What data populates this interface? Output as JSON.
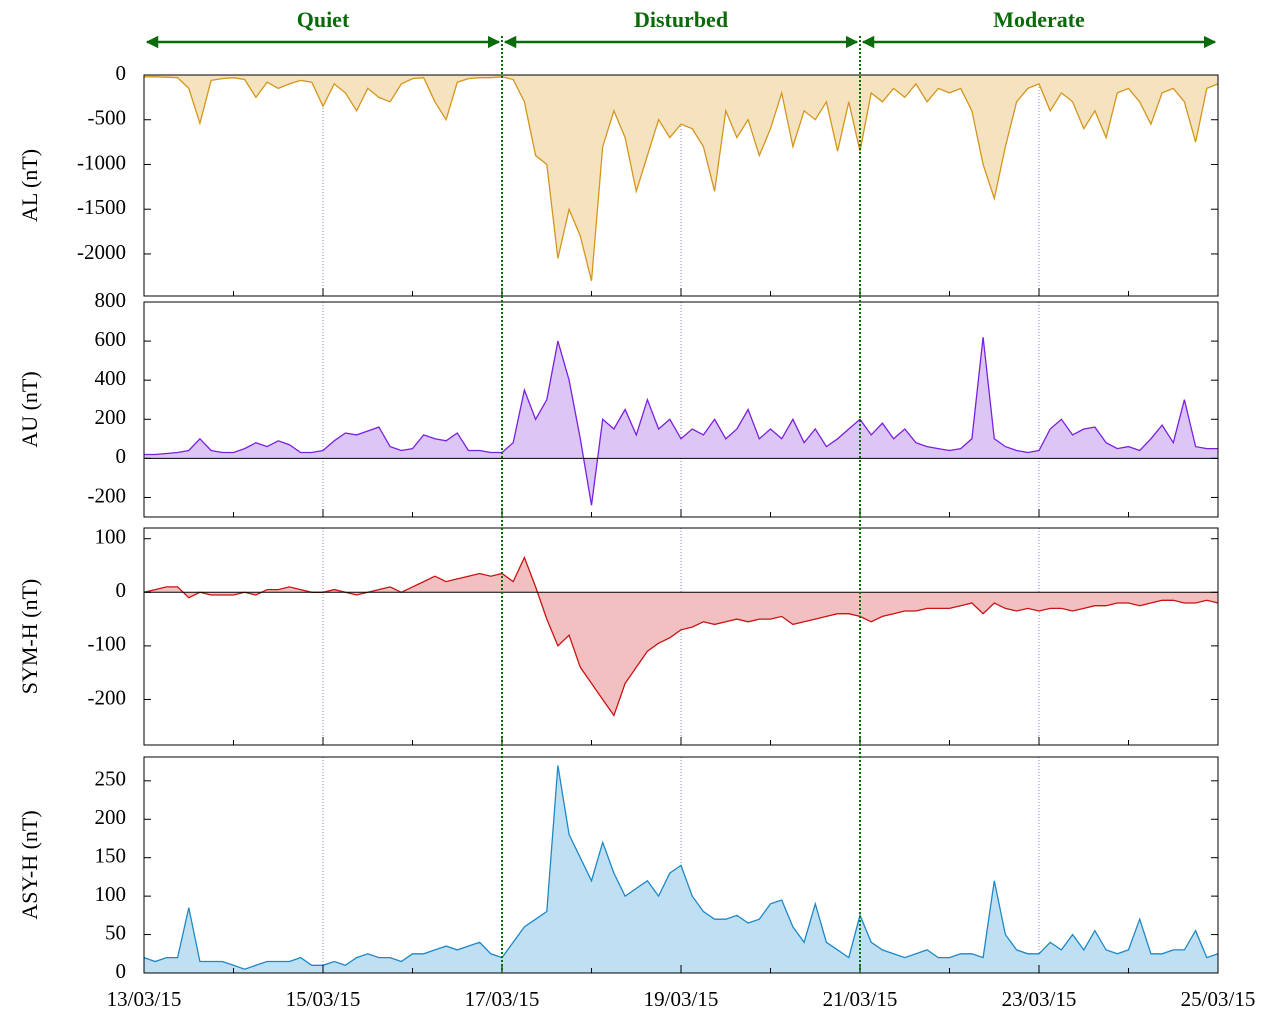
{
  "chart_data": [
    {
      "type": "area",
      "ylabel": "AL (nT)",
      "color": "#d4961c",
      "fill": "#f5e3c0",
      "x": [
        13,
        13.125,
        13.25,
        13.375,
        13.5,
        13.625,
        13.75,
        13.875,
        14,
        14.125,
        14.25,
        14.375,
        14.5,
        14.625,
        14.75,
        14.875,
        15,
        15.125,
        15.25,
        15.375,
        15.5,
        15.625,
        15.75,
        15.875,
        16,
        16.125,
        16.25,
        16.375,
        16.5,
        16.625,
        16.75,
        16.875,
        17,
        17.125,
        17.25,
        17.375,
        17.5,
        17.625,
        17.75,
        17.875,
        18,
        18.125,
        18.25,
        18.375,
        18.5,
        18.625,
        18.75,
        18.875,
        19,
        19.125,
        19.25,
        19.375,
        19.5,
        19.625,
        19.75,
        19.875,
        20,
        20.125,
        20.25,
        20.375,
        20.5,
        20.625,
        20.75,
        20.875,
        21,
        21.125,
        21.25,
        21.375,
        21.5,
        21.625,
        21.75,
        21.875,
        22,
        22.125,
        22.25,
        22.375,
        22.5,
        22.625,
        22.75,
        22.875,
        23,
        23.125,
        23.25,
        23.375,
        23.5,
        23.625,
        23.75,
        23.875,
        24,
        24.125,
        24.25,
        24.375,
        24.5,
        24.625,
        24.75,
        24.875,
        25
      ],
      "values": [
        -20,
        -20,
        -25,
        -30,
        -150,
        -540,
        -60,
        -40,
        -30,
        -50,
        -250,
        -80,
        -150,
        -100,
        -60,
        -80,
        -350,
        -100,
        -200,
        -400,
        -150,
        -250,
        -300,
        -100,
        -40,
        -30,
        -300,
        -500,
        -80,
        -40,
        -30,
        -30,
        -20,
        -50,
        -300,
        -900,
        -1000,
        -2050,
        -1500,
        -1800,
        -2300,
        -800,
        -400,
        -700,
        -1300,
        -900,
        -500,
        -700,
        -550,
        -600,
        -800,
        -1300,
        -400,
        -700,
        -500,
        -900,
        -600,
        -200,
        -800,
        -400,
        -500,
        -300,
        -850,
        -300,
        -850,
        -200,
        -300,
        -150,
        -250,
        -100,
        -300,
        -150,
        -200,
        -150,
        -400,
        -1000,
        -1380,
        -800,
        -300,
        -150,
        -100,
        -400,
        -200,
        -300,
        -600,
        -400,
        -700,
        -200,
        -150,
        -300,
        -550,
        -200,
        -150,
        -300,
        -750,
        -150,
        -100
      ],
      "xlim": [
        13,
        25
      ],
      "xticks": [
        13,
        15,
        17,
        19,
        21,
        23,
        25
      ],
      "xminor": [
        14,
        16,
        18,
        20,
        22,
        24
      ],
      "ylim": [
        -2470,
        0
      ],
      "yticks": [
        0,
        -500,
        -1000,
        -1500,
        -2000
      ]
    },
    {
      "type": "area",
      "ylabel": "AU (nT)",
      "color": "#7b1fe0",
      "fill": "#dcc6f5",
      "x": [
        13,
        13.125,
        13.25,
        13.375,
        13.5,
        13.625,
        13.75,
        13.875,
        14,
        14.125,
        14.25,
        14.375,
        14.5,
        14.625,
        14.75,
        14.875,
        15,
        15.125,
        15.25,
        15.375,
        15.5,
        15.625,
        15.75,
        15.875,
        16,
        16.125,
        16.25,
        16.375,
        16.5,
        16.625,
        16.75,
        16.875,
        17,
        17.125,
        17.25,
        17.375,
        17.5,
        17.625,
        17.75,
        17.875,
        18,
        18.125,
        18.25,
        18.375,
        18.5,
        18.625,
        18.75,
        18.875,
        19,
        19.125,
        19.25,
        19.375,
        19.5,
        19.625,
        19.75,
        19.875,
        20,
        20.125,
        20.25,
        20.375,
        20.5,
        20.625,
        20.75,
        20.875,
        21,
        21.125,
        21.25,
        21.375,
        21.5,
        21.625,
        21.75,
        21.875,
        22,
        22.125,
        22.25,
        22.375,
        22.5,
        22.625,
        22.75,
        22.875,
        23,
        23.125,
        23.25,
        23.375,
        23.5,
        23.625,
        23.75,
        23.875,
        24,
        24.125,
        24.25,
        24.375,
        24.5,
        24.625,
        24.75,
        24.875,
        25
      ],
      "values": [
        20,
        20,
        25,
        30,
        40,
        100,
        40,
        30,
        30,
        50,
        80,
        60,
        90,
        70,
        30,
        30,
        40,
        90,
        130,
        120,
        140,
        160,
        60,
        40,
        50,
        120,
        100,
        90,
        130,
        40,
        40,
        30,
        30,
        80,
        350,
        200,
        300,
        600,
        400,
        100,
        -240,
        200,
        150,
        250,
        120,
        300,
        150,
        200,
        100,
        150,
        120,
        200,
        100,
        150,
        250,
        100,
        150,
        100,
        200,
        80,
        150,
        60,
        100,
        150,
        200,
        120,
        180,
        100,
        150,
        80,
        60,
        50,
        40,
        50,
        100,
        620,
        100,
        60,
        40,
        30,
        40,
        150,
        200,
        120,
        150,
        160,
        80,
        50,
        60,
        40,
        100,
        170,
        80,
        300,
        60,
        50,
        50
      ],
      "xlim": [
        13,
        25
      ],
      "xticks": [
        13,
        15,
        17,
        19,
        21,
        23,
        25
      ],
      "xminor": [
        14,
        16,
        18,
        20,
        22,
        24
      ],
      "ylim": [
        -300,
        800
      ],
      "yticks": [
        -200,
        0,
        200,
        400,
        600,
        800
      ]
    },
    {
      "type": "area",
      "ylabel": "SYM-H (nT)",
      "color": "#c81414",
      "fill": "#f2c0c0",
      "x": [
        13,
        13.125,
        13.25,
        13.375,
        13.5,
        13.625,
        13.75,
        13.875,
        14,
        14.125,
        14.25,
        14.375,
        14.5,
        14.625,
        14.75,
        14.875,
        15,
        15.125,
        15.25,
        15.375,
        15.5,
        15.625,
        15.75,
        15.875,
        16,
        16.125,
        16.25,
        16.375,
        16.5,
        16.625,
        16.75,
        16.875,
        17,
        17.125,
        17.25,
        17.375,
        17.5,
        17.625,
        17.75,
        17.875,
        18,
        18.125,
        18.25,
        18.375,
        18.5,
        18.625,
        18.75,
        18.875,
        19,
        19.125,
        19.25,
        19.375,
        19.5,
        19.625,
        19.75,
        19.875,
        20,
        20.125,
        20.25,
        20.375,
        20.5,
        20.625,
        20.75,
        20.875,
        21,
        21.125,
        21.25,
        21.375,
        21.5,
        21.625,
        21.75,
        21.875,
        22,
        22.125,
        22.25,
        22.375,
        22.5,
        22.625,
        22.75,
        22.875,
        23,
        23.125,
        23.25,
        23.375,
        23.5,
        23.625,
        23.75,
        23.875,
        24,
        24.125,
        24.25,
        24.375,
        24.5,
        24.625,
        24.75,
        24.875,
        25
      ],
      "values": [
        0,
        5,
        10,
        10,
        -10,
        0,
        -5,
        -5,
        -5,
        0,
        -5,
        5,
        5,
        10,
        5,
        0,
        0,
        5,
        0,
        -5,
        0,
        5,
        10,
        0,
        10,
        20,
        30,
        20,
        25,
        30,
        35,
        30,
        35,
        20,
        65,
        10,
        -50,
        -100,
        -80,
        -140,
        -170,
        -200,
        -230,
        -170,
        -140,
        -110,
        -95,
        -85,
        -70,
        -65,
        -55,
        -60,
        -55,
        -50,
        -55,
        -50,
        -50,
        -45,
        -60,
        -55,
        -50,
        -45,
        -40,
        -40,
        -45,
        -55,
        -45,
        -40,
        -35,
        -35,
        -30,
        -30,
        -30,
        -25,
        -20,
        -40,
        -20,
        -30,
        -35,
        -30,
        -35,
        -30,
        -30,
        -35,
        -30,
        -25,
        -25,
        -20,
        -20,
        -25,
        -20,
        -15,
        -15,
        -20,
        -20,
        -15,
        -20
      ],
      "xlim": [
        13,
        25
      ],
      "xticks": [
        13,
        15,
        17,
        19,
        21,
        23,
        25
      ],
      "xminor": [
        14,
        16,
        18,
        20,
        22,
        24
      ],
      "ylim": [
        -285,
        120
      ],
      "yticks": [
        -200,
        -100,
        0,
        100
      ]
    },
    {
      "type": "area",
      "ylabel": "ASY-H (nT)",
      "color": "#1e88c8",
      "fill": "#bfe0f2",
      "x": [
        13,
        13.125,
        13.25,
        13.375,
        13.5,
        13.625,
        13.75,
        13.875,
        14,
        14.125,
        14.25,
        14.375,
        14.5,
        14.625,
        14.75,
        14.875,
        15,
        15.125,
        15.25,
        15.375,
        15.5,
        15.625,
        15.75,
        15.875,
        16,
        16.125,
        16.25,
        16.375,
        16.5,
        16.625,
        16.75,
        16.875,
        17,
        17.125,
        17.25,
        17.375,
        17.5,
        17.625,
        17.75,
        17.875,
        18,
        18.125,
        18.25,
        18.375,
        18.5,
        18.625,
        18.75,
        18.875,
        19,
        19.125,
        19.25,
        19.375,
        19.5,
        19.625,
        19.75,
        19.875,
        20,
        20.125,
        20.25,
        20.375,
        20.5,
        20.625,
        20.75,
        20.875,
        21,
        21.125,
        21.25,
        21.375,
        21.5,
        21.625,
        21.75,
        21.875,
        22,
        22.125,
        22.25,
        22.375,
        22.5,
        22.625,
        22.75,
        22.875,
        23,
        23.125,
        23.25,
        23.375,
        23.5,
        23.625,
        23.75,
        23.875,
        24,
        24.125,
        24.25,
        24.375,
        24.5,
        24.625,
        24.75,
        24.875,
        25
      ],
      "values": [
        20,
        15,
        20,
        20,
        85,
        15,
        15,
        15,
        10,
        5,
        10,
        15,
        15,
        15,
        20,
        10,
        10,
        15,
        10,
        20,
        25,
        20,
        20,
        15,
        25,
        25,
        30,
        35,
        30,
        35,
        40,
        25,
        20,
        40,
        60,
        70,
        80,
        270,
        180,
        150,
        120,
        170,
        130,
        100,
        110,
        120,
        100,
        130,
        140,
        100,
        80,
        70,
        70,
        75,
        65,
        70,
        90,
        95,
        60,
        40,
        90,
        40,
        30,
        20,
        75,
        40,
        30,
        25,
        20,
        25,
        30,
        20,
        20,
        25,
        25,
        20,
        120,
        50,
        30,
        25,
        25,
        40,
        30,
        50,
        30,
        55,
        30,
        25,
        30,
        70,
        25,
        25,
        30,
        30,
        55,
        20,
        25
      ],
      "xlim": [
        13,
        25
      ],
      "xticks": [
        {
          "value": 13,
          "label": "13/03/15"
        },
        {
          "value": 15,
          "label": "15/03/15"
        },
        {
          "value": 17,
          "label": "17/03/15"
        },
        {
          "value": 19,
          "label": "19/03/15"
        },
        {
          "value": 21,
          "label": "21/03/15"
        },
        {
          "value": 23,
          "label": "23/03/15"
        },
        {
          "value": 25,
          "label": "25/03/15"
        }
      ],
      "xminor": [
        14,
        16,
        18,
        20,
        22,
        24
      ],
      "ylim": [
        0,
        281
      ],
      "yticks": [
        0,
        50,
        100,
        150,
        200,
        250
      ]
    }
  ],
  "regions": [
    {
      "label": "Quiet",
      "start": 13,
      "end": 17
    },
    {
      "label": "Disturbed",
      "start": 17,
      "end": 21
    },
    {
      "label": "Moderate",
      "start": 21,
      "end": 25
    }
  ],
  "region_color": "#0b6b0b",
  "vgrid": [
    15,
    19,
    23
  ],
  "vgrid_color": "#8080e0"
}
